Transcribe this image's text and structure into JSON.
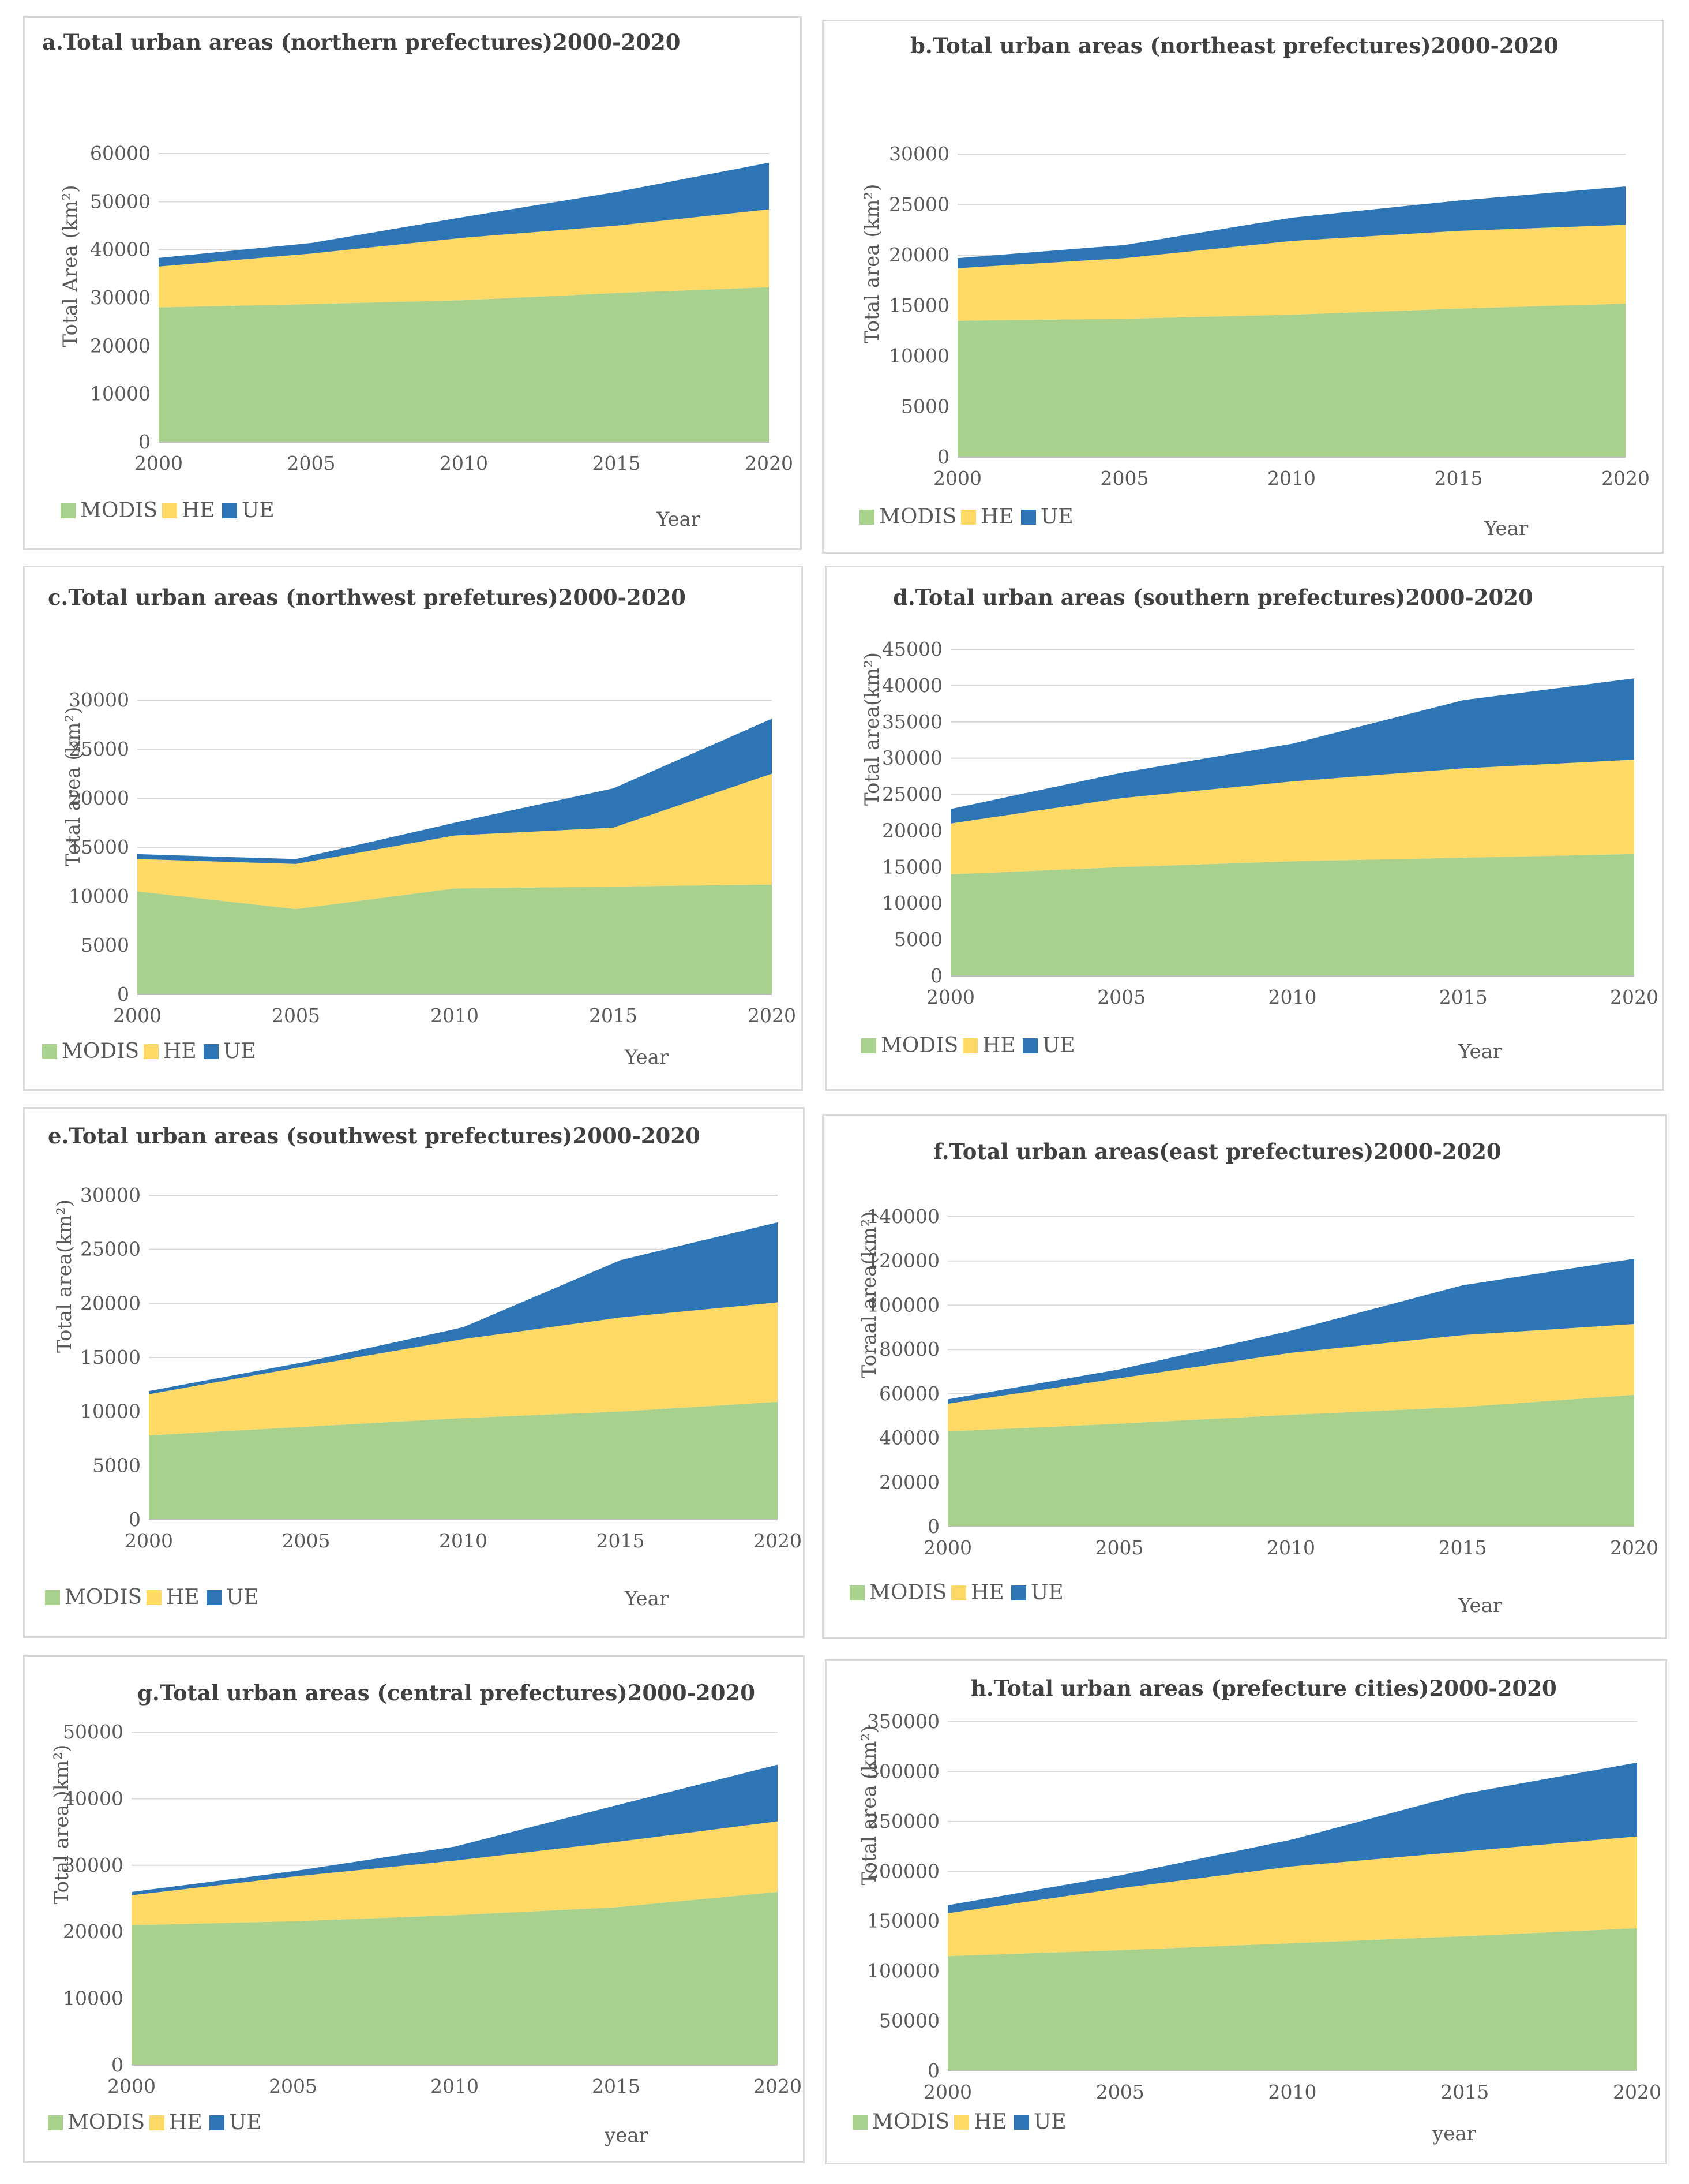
{
  "chart_data": [
    {
      "id": "a",
      "type": "area",
      "title": "a.Total urban areas (northern prefectures)2000-2020",
      "ylabel": "Total Area (km²)",
      "xlabel": "Year",
      "x": [
        "2000",
        "2005",
        "2010",
        "2015",
        "2020"
      ],
      "yticks": [
        "0",
        "10000",
        "20000",
        "30000",
        "40000",
        "50000",
        "60000"
      ],
      "ylim": [
        0,
        60000
      ],
      "series": [
        {
          "name": "MODIS",
          "values": [
            28000,
            28700,
            29500,
            31000,
            32200
          ]
        },
        {
          "name": "HE",
          "values": [
            8500,
            10500,
            13000,
            14000,
            16200
          ]
        },
        {
          "name": "UE",
          "values": [
            1800,
            2200,
            4300,
            7000,
            9700
          ]
        }
      ]
    },
    {
      "id": "b",
      "type": "area",
      "title": "b.Total urban areas (northeast prefectures)2000-2020",
      "ylabel": "Total area (km²)",
      "xlabel": "Year",
      "x": [
        "2000",
        "2005",
        "2010",
        "2015",
        "2020"
      ],
      "yticks": [
        "0",
        "5000",
        "10000",
        "15000",
        "20000",
        "25000",
        "30000"
      ],
      "ylim": [
        0,
        30000
      ],
      "series": [
        {
          "name": "MODIS",
          "values": [
            13500,
            13700,
            14100,
            14700,
            15200
          ]
        },
        {
          "name": "HE",
          "values": [
            5200,
            6000,
            7300,
            7700,
            7800
          ]
        },
        {
          "name": "UE",
          "values": [
            1000,
            1300,
            2300,
            3000,
            3800
          ]
        }
      ]
    },
    {
      "id": "c",
      "type": "area",
      "title": "c.Total urban areas (northwest prefetures)2000-2020",
      "ylabel": "Total area (km²)",
      "xlabel": "Year",
      "x": [
        "2000",
        "2005",
        "2010",
        "2015",
        "2020"
      ],
      "yticks": [
        "0",
        "5000",
        "10000",
        "15000",
        "20000",
        "25000",
        "30000"
      ],
      "ylim": [
        0,
        30000
      ],
      "series": [
        {
          "name": "MODIS",
          "values": [
            10500,
            8700,
            10800,
            11000,
            11200
          ]
        },
        {
          "name": "HE",
          "values": [
            3300,
            4600,
            5400,
            6000,
            11300
          ]
        },
        {
          "name": "UE",
          "values": [
            500,
            500,
            1300,
            4000,
            5600
          ]
        }
      ]
    },
    {
      "id": "d",
      "type": "area",
      "title": "d.Total urban areas (southern prefectures)2000-2020",
      "ylabel": "Total area(km²)",
      "xlabel": "Year",
      "x": [
        "2000",
        "2005",
        "2010",
        "2015",
        "2020"
      ],
      "yticks": [
        "0",
        "5000",
        "10000",
        "15000",
        "20000",
        "25000",
        "30000",
        "35000",
        "40000",
        "45000"
      ],
      "ylim": [
        0,
        45000
      ],
      "series": [
        {
          "name": "MODIS",
          "values": [
            14000,
            15000,
            15800,
            16300,
            16800
          ]
        },
        {
          "name": "HE",
          "values": [
            7000,
            9500,
            11000,
            12300,
            13000
          ]
        },
        {
          "name": "UE",
          "values": [
            2000,
            3500,
            5200,
            9400,
            11200
          ]
        }
      ]
    },
    {
      "id": "e",
      "type": "area",
      "title": "e.Total urban areas (southwest prefectures)2000-2020",
      "ylabel": "Total area(km²)",
      "xlabel": "Year",
      "x": [
        "2000",
        "2005",
        "2010",
        "2015",
        "2020"
      ],
      "yticks": [
        "0",
        "5000",
        "10000",
        "15000",
        "20000",
        "25000",
        "30000"
      ],
      "ylim": [
        0,
        30000
      ],
      "series": [
        {
          "name": "MODIS",
          "values": [
            7800,
            8600,
            9400,
            10000,
            10900
          ]
        },
        {
          "name": "HE",
          "values": [
            3800,
            5600,
            7300,
            8700,
            9200
          ]
        },
        {
          "name": "UE",
          "values": [
            300,
            400,
            1100,
            5300,
            7400
          ]
        }
      ]
    },
    {
      "id": "f",
      "type": "area",
      "title": "f.Total urban areas(east prefectures)2000-2020",
      "ylabel": "Toraal area(km²)",
      "xlabel": "Year",
      "x": [
        "2000",
        "2005",
        "2010",
        "2015",
        "2020"
      ],
      "yticks": [
        "0",
        "20000",
        "40000",
        "60000",
        "80000",
        "100000",
        "120000",
        "140000"
      ],
      "ylim": [
        0,
        140000
      ],
      "series": [
        {
          "name": "MODIS",
          "values": [
            43000,
            46500,
            50500,
            54000,
            59500
          ]
        },
        {
          "name": "HE",
          "values": [
            12500,
            20500,
            28000,
            32500,
            32000
          ]
        },
        {
          "name": "UE",
          "values": [
            2000,
            4000,
            10000,
            22500,
            29500
          ]
        }
      ]
    },
    {
      "id": "g",
      "type": "area",
      "title": "g.Total urban areas (central prefectures)2000-2020",
      "ylabel": "Total area )km²)",
      "xlabel": "year",
      "x": [
        "2000",
        "2005",
        "2010",
        "2015",
        "2020"
      ],
      "yticks": [
        "0",
        "10000",
        "20000",
        "30000",
        "40000",
        "50000"
      ],
      "ylim": [
        0,
        50000
      ],
      "series": [
        {
          "name": "MODIS",
          "values": [
            21000,
            21600,
            22500,
            23700,
            26000
          ]
        },
        {
          "name": "HE",
          "values": [
            4500,
            6700,
            8200,
            9800,
            10600
          ]
        },
        {
          "name": "UE",
          "values": [
            500,
            800,
            2100,
            5500,
            8500
          ]
        }
      ]
    },
    {
      "id": "h",
      "type": "area",
      "title": "h.Total urban areas (prefecture cities)2000-2020",
      "ylabel": "Total area (km²)",
      "xlabel": "year",
      "x": [
        "2000",
        "2005",
        "2010",
        "2015",
        "2020"
      ],
      "yticks": [
        "0",
        "50000",
        "100000",
        "150000",
        "200000",
        "250000",
        "300000",
        "350000"
      ],
      "ylim": [
        0,
        350000
      ],
      "series": [
        {
          "name": "MODIS",
          "values": [
            115000,
            121000,
            128000,
            135000,
            143000
          ]
        },
        {
          "name": "HE",
          "values": [
            43000,
            62000,
            77000,
            85000,
            92000
          ]
        },
        {
          "name": "UE",
          "values": [
            8000,
            13000,
            27000,
            58000,
            74000
          ]
        }
      ]
    }
  ],
  "colors": {
    "MODIS": "#a9d18e",
    "HE": "#ffd966",
    "UE": "#2e75b6",
    "grid": "#d9d9d9",
    "axis": "#bfbfbf"
  }
}
